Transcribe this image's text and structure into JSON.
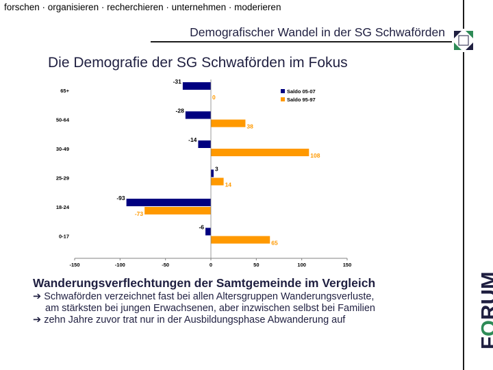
{
  "header": {
    "tagline": "forschen · organisieren · recherchieren · unternehmen · moderieren",
    "subtitle": "Demografischer Wandel in der SG Schwaförden"
  },
  "main_title": "Die Demografie der SG Schwaförden im Fokus",
  "chart_data": {
    "type": "bar",
    "orientation": "horizontal",
    "categories": [
      "65+",
      "50-64",
      "30-49",
      "25-29",
      "18-24",
      "0-17"
    ],
    "series": [
      {
        "name": "Saldo 05-07",
        "color": "#000080",
        "values": [
          -31,
          -28,
          -14,
          3,
          -93,
          -6
        ]
      },
      {
        "name": "Saldo 95-97",
        "color": "#FF9900",
        "values": [
          0,
          38,
          108,
          14,
          -73,
          65
        ]
      }
    ],
    "xlim": [
      -150,
      150
    ],
    "xticks": [
      -150,
      -100,
      -50,
      0,
      50,
      100,
      150
    ],
    "legend_position": "top-right",
    "grid": false
  },
  "section_heading": "Wanderungsverflechtungen der Samtgemeinde im Vergleich",
  "bullets": {
    "arrow": "➔",
    "line1": "Schwaförden verzeichnet fast bei allen Altersgruppen Wanderungsverluste,",
    "line2": "am stärksten bei jungen Erwachsenen, aber inzwischen selbst bei Familien",
    "line3": "zehn Jahre zuvor trat  nur in der Ausbildungsphase Abwanderung auf"
  },
  "logo": {
    "first": "F",
    "o": "O",
    "rest": "RUM"
  }
}
